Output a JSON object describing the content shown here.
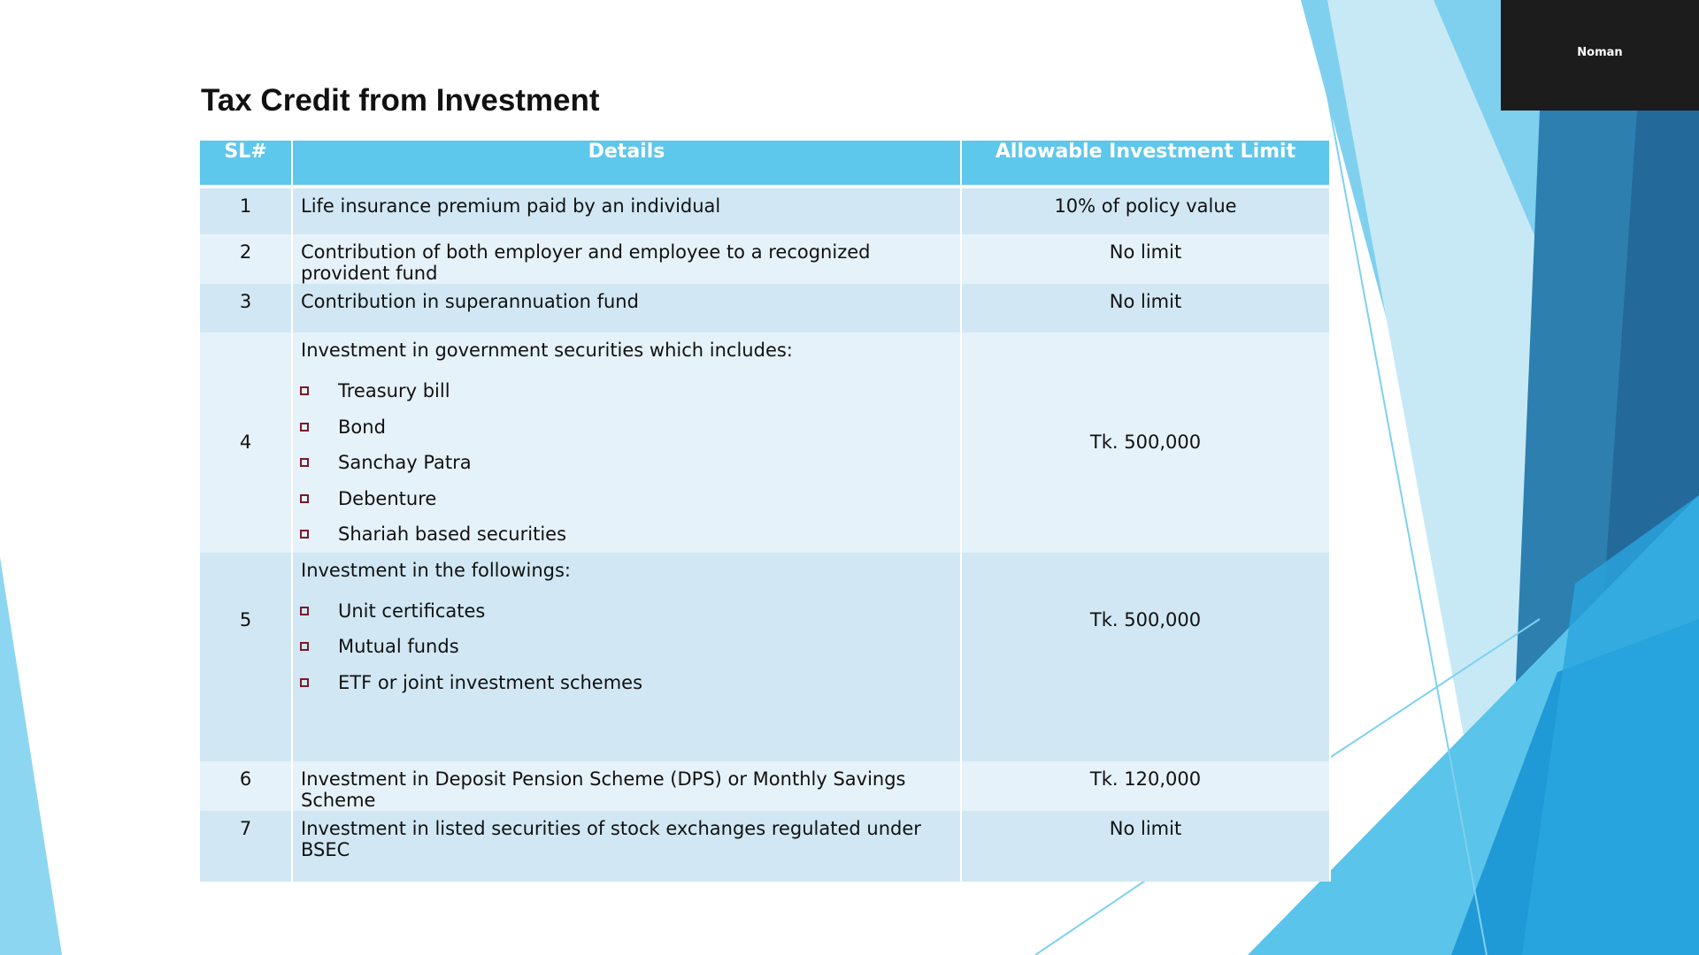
{
  "slide": {
    "title": "Tax Credit from Investment"
  },
  "table": {
    "headers": [
      "SL#",
      "Details",
      "Allowable Investment Limit"
    ],
    "rows": [
      {
        "sl": "1",
        "details": "Life insurance premium paid by an individual",
        "limit": "10% of policy value"
      },
      {
        "sl": "2",
        "details": "Contribution of both employer and employee to a recognized provident fund",
        "limit": "No limit"
      },
      {
        "sl": "3",
        "details": "Contribution in superannuation fund",
        "limit": "No limit"
      },
      {
        "sl": "4",
        "details": "Investment in government securities which includes:",
        "items": [
          "Treasury bill",
          "Bond",
          "Sanchay Patra",
          "Debenture",
          "Shariah based securities"
        ],
        "limit": "Tk. 500,000"
      },
      {
        "sl": "5",
        "details": "Investment in the followings:",
        "items": [
          "Unit certificates",
          "Mutual funds",
          "ETF or joint investment schemes"
        ],
        "limit": "Tk. 500,000"
      },
      {
        "sl": "6",
        "details": "Investment in Deposit Pension Scheme (DPS) or Monthly Savings Scheme",
        "limit": "Tk. 120,000"
      },
      {
        "sl": "7",
        "details": "Investment in listed securities of stock exchanges regulated under BSEC",
        "limit": "No limit"
      }
    ]
  },
  "participant": {
    "name": "Noman"
  },
  "colors": {
    "header": "#5ec7ec",
    "row_dark": "#d1e8f4",
    "row_light": "#e6f2f9",
    "bullet": "#7a1a2a"
  }
}
